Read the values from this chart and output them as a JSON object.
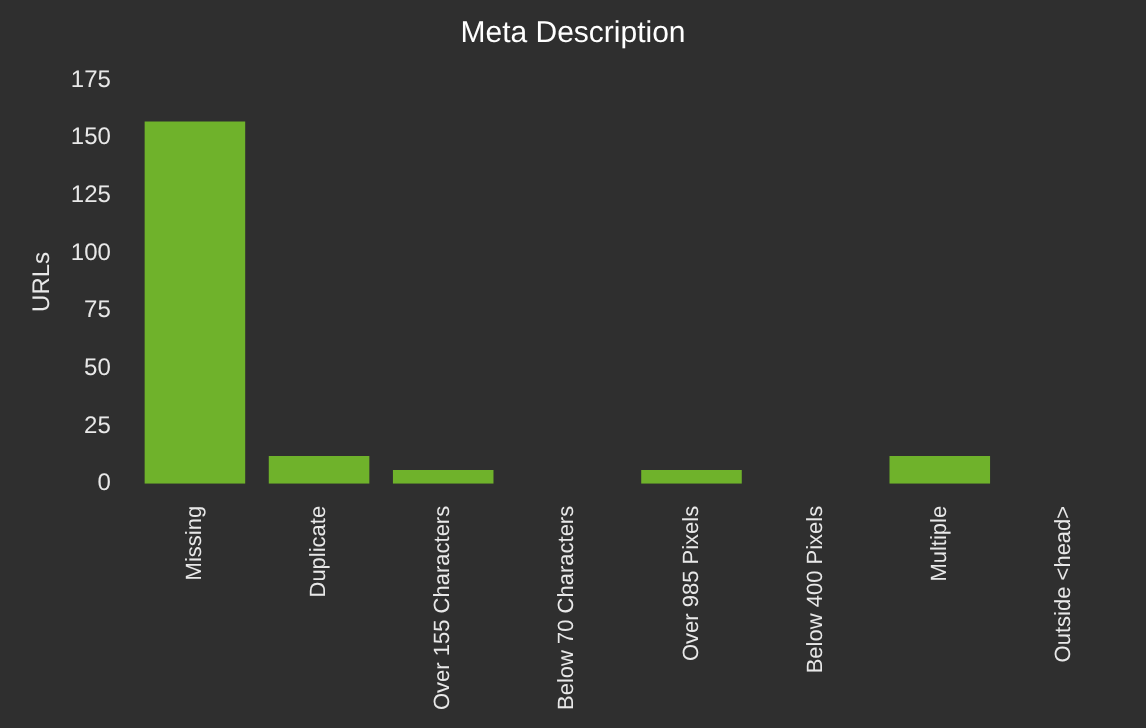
{
  "chart_data": {
    "type": "bar",
    "title": "Meta Description",
    "ylabel": "URLs",
    "categories": [
      "Missing",
      "Duplicate",
      "Over 155 Characters",
      "Below 70 Characters",
      "Over 985 Pixels",
      "Below 400 Pixels",
      "Multiple",
      "Outside <head>"
    ],
    "values": [
      157,
      12,
      6,
      0,
      6,
      0,
      12,
      0
    ],
    "color": "#6fb22b",
    "ylim": [
      0,
      175
    ],
    "yticks": [
      0,
      25,
      50,
      75,
      100,
      125,
      150,
      175
    ],
    "grid": false,
    "legend": false
  }
}
